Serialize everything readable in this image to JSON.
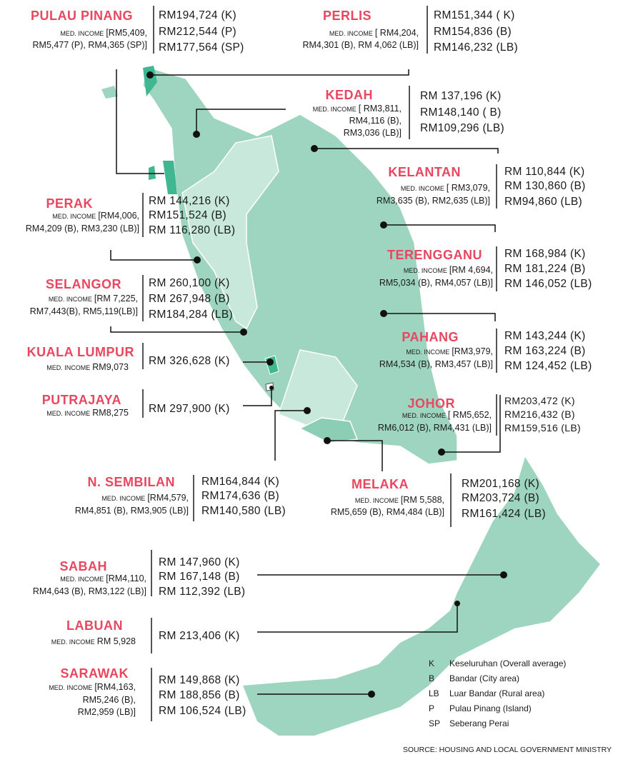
{
  "states": [
    {
      "name": "PULAU PINANG",
      "income_label": "MED. INCOME",
      "income_lines": [
        "[RM5,409,",
        "RM5,477 (P), RM4,365 (SP)]"
      ],
      "prices": [
        "RM194,724 (K)",
        "RM212,544 (P)",
        "RM177,564 (SP)"
      ]
    },
    {
      "name": "PERLIS",
      "income_label": "MED. INCOME",
      "income_lines": [
        "[ RM4,204,",
        "RM4,301 (B), RM 4,062 (LB)]"
      ],
      "prices": [
        "RM151,344 ( K)",
        "RM154,836 (B)",
        "RM146,232 (LB)"
      ]
    },
    {
      "name": "KEDAH",
      "income_label": "MED. INCOME",
      "income_lines": [
        "[ RM3,811,",
        "RM4,116 (B),",
        "RM3,036 (LB)]"
      ],
      "prices": [
        "RM 137,196 (K)",
        "RM148,140 ( B)",
        "RM109,296 (LB)"
      ]
    },
    {
      "name": "KELANTAN",
      "income_label": "MED. INCOME",
      "income_lines": [
        "[ RM3,079,",
        "RM3,635 (B), RM2,635 (LB)]"
      ],
      "prices": [
        "RM 110,844 (K)",
        "RM 130,860 (B)",
        "RM94,860 (LB)"
      ]
    },
    {
      "name": "PERAK",
      "income_label": "MED. INCOME",
      "income_lines": [
        "[RM4,006,",
        "RM4,209 (B), RM3,230 (LB)]"
      ],
      "prices": [
        "RM 144,216 (K)",
        "RM151,524 (B)",
        "RM 116,280 (LB)"
      ]
    },
    {
      "name": "TERENGGANU",
      "income_label": "MED. INCOME",
      "income_lines": [
        "[RM 4,694,",
        "RM5,034 (B), RM4,057 (LB)]"
      ],
      "prices": [
        "RM 168,984 (K)",
        "RM 181,224 (B)",
        "RM 146,052 (LB)"
      ]
    },
    {
      "name": "SELANGOR",
      "income_label": "MED. INCOME",
      "income_lines": [
        "[RM 7,225,",
        "RM7,443(B), RM5,119(LB)]"
      ],
      "prices": [
        "RM 260,100 (K)",
        "RM 267,948 (B)",
        "RM184,284 (LB)"
      ]
    },
    {
      "name": "PAHANG",
      "income_label": "MED. INCOME",
      "income_lines": [
        "[RM3,979,",
        "RM4,534 (B), RM3,457 (LB)]"
      ],
      "prices": [
        "RM 143,244 (K)",
        "RM 163,224 (B)",
        "RM 124,452 (LB)"
      ]
    },
    {
      "name": "KUALA LUMPUR",
      "income_label": "MED. INCOME",
      "income_lines": [
        "RM9,073"
      ],
      "prices": [
        "RM 326,628 (K)"
      ]
    },
    {
      "name": "PUTRAJAYA",
      "income_label": "MED. INCOME",
      "income_lines": [
        "RM8,275"
      ],
      "prices": [
        "RM 297,900 (K)"
      ]
    },
    {
      "name": "JOHOR",
      "income_label": "MED. INCOME",
      "income_lines": [
        "[ RM5,652,",
        "RM6,012 (B), RM4,431 (LB)]"
      ],
      "prices": [
        "RM203,472 (K)",
        "RM216,432 (B)",
        "RM159,516 (LB)"
      ]
    },
    {
      "name": "N. SEMBILAN",
      "income_label": "MED. INCOME",
      "income_lines": [
        "[RM4,579,",
        "RM4,851 (B), RM3,905 (LB)]"
      ],
      "prices": [
        "RM164,844 (K)",
        "RM174,636 (B)",
        "RM140,580 (LB)"
      ]
    },
    {
      "name": "MELAKA",
      "income_label": "MED. INCOME",
      "income_lines": [
        "[RM 5,588,",
        "RM5,659 (B), RM4,484 (LB)]"
      ],
      "prices": [
        "RM201,168 (K)",
        "RM203,724 (B)",
        "RM161,424 (LB)"
      ]
    },
    {
      "name": "SABAH",
      "income_label": "MED. INCOME",
      "income_lines": [
        "[RM4,110,",
        "RM4,643 (B), RM3,122 (LB)]"
      ],
      "prices": [
        "RM 147,960 (K)",
        "RM 167,148 (B)",
        "RM 112,392 (LB)"
      ]
    },
    {
      "name": "LABUAN",
      "income_label": "MED. INCOME",
      "income_lines": [
        "RM 5,928"
      ],
      "prices": [
        "RM 213,406 (K)"
      ]
    },
    {
      "name": "SARAWAK",
      "income_label": "MED. INCOME",
      "income_lines": [
        "[RM4,163,",
        "RM5,246 (B),",
        "RM2,959 (LB)]"
      ],
      "prices": [
        "RM 149,868 (K)",
        "RM 188,856 (B)",
        "RM 106,524 (LB)"
      ]
    }
  ],
  "legend": [
    {
      "key": "K",
      "text": "Keseluruhan (Overall average)"
    },
    {
      "key": "B",
      "text": "Bandar (City area)"
    },
    {
      "key": "LB",
      "text": "Luar Bandar (Rural area)"
    },
    {
      "key": "P",
      "text": "Pulau Pinang (Island)"
    },
    {
      "key": "SP",
      "text": "Seberang Perai"
    }
  ],
  "source": "SOURCE: HOUSING AND LOCAL GOVERNMENT MINISTRY"
}
